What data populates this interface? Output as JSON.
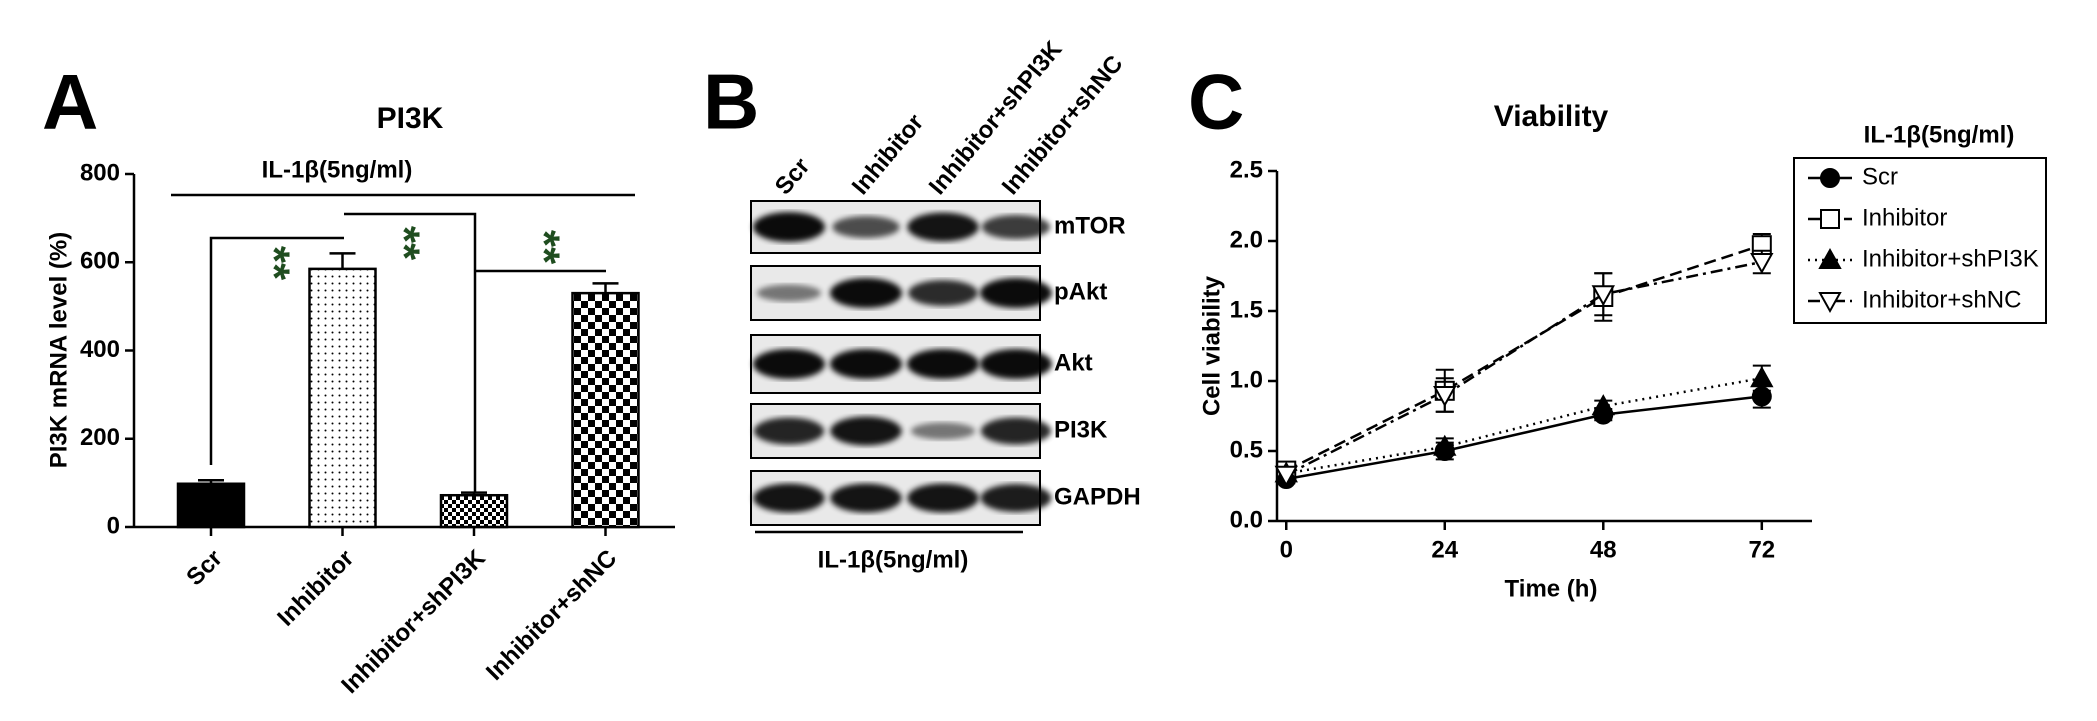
{
  "chart_data": [
    {
      "type": "bar",
      "panel_label": "A",
      "title": "PI3K",
      "ylabel": "PI3K mRNA level (%)",
      "annotation": "IL-1β(5ng/ml)",
      "categories": [
        "Scr",
        "Inhibitor",
        "Inhibitor+shPI3K",
        "Inhibitor+shNC"
      ],
      "values": [
        98,
        585,
        72,
        530
      ],
      "errors": [
        8,
        35,
        6,
        22
      ],
      "fills": [
        "solid",
        "dots",
        "checker-small",
        "checker-large"
      ],
      "color": "#000000",
      "ylim": [
        0,
        800
      ],
      "yticks": [
        0,
        200,
        400,
        600,
        800
      ],
      "significance": [
        "**",
        "**",
        "**"
      ],
      "significance_color": "#1f4d1f"
    },
    {
      "type": "blot",
      "panel_label": "B",
      "lanes": [
        "Scr",
        "Inhibitor",
        "Inhibitor+shPI3K",
        "Inhibitor+shNC"
      ],
      "proteins": [
        "mTOR",
        "pAkt",
        "Akt",
        "PI3K",
        "GAPDH"
      ],
      "annotation": "IL-1β(5ng/ml)"
    },
    {
      "type": "line",
      "panel_label": "C",
      "title": "Viability",
      "xlabel": "Time (h)",
      "ylabel": "Cell viability",
      "legend_title": "IL-1β(5ng/ml)",
      "legend": "upper right",
      "x": [
        0,
        24,
        48,
        72
      ],
      "xlim": [
        -1.4,
        79.6
      ],
      "xticks": [
        0,
        24,
        48,
        72
      ],
      "ylim": [
        0,
        2.5
      ],
      "yticks": [
        {
          "value": 0,
          "label": "0.0"
        },
        0.5,
        {
          "value": 1,
          "label": "1.0"
        },
        1.5,
        {
          "value": 2,
          "label": "2.0"
        },
        2.5
      ],
      "series": [
        {
          "name": "Scr",
          "color": "#000000",
          "marker": "circle",
          "dash": "solid",
          "values": [
            0.3,
            0.5,
            0.76,
            0.89
          ],
          "errors": [
            0.03,
            0.06,
            0.04,
            0.08
          ]
        },
        {
          "name": "Inhibitor",
          "color": "#000000",
          "marker": "square-open",
          "dash": "dashed",
          "values": [
            0.36,
            0.93,
            1.6,
            1.97
          ],
          "errors": [
            0.04,
            0.15,
            0.17,
            0.08
          ]
        },
        {
          "name": "Inhibitor+shPI3K",
          "color": "#000000",
          "marker": "triangle",
          "dash": "dotted",
          "values": [
            0.34,
            0.53,
            0.82,
            1.02
          ],
          "errors": [
            0.03,
            0.06,
            0.04,
            0.09
          ]
        },
        {
          "name": "Inhibitor+shNC",
          "color": "#000000",
          "marker": "triangle-down-open",
          "dash": "dashdot",
          "values": [
            0.33,
            0.9,
            1.62,
            1.85
          ],
          "errors": [
            0.03,
            0.12,
            0.15,
            0.08
          ]
        }
      ]
    }
  ]
}
